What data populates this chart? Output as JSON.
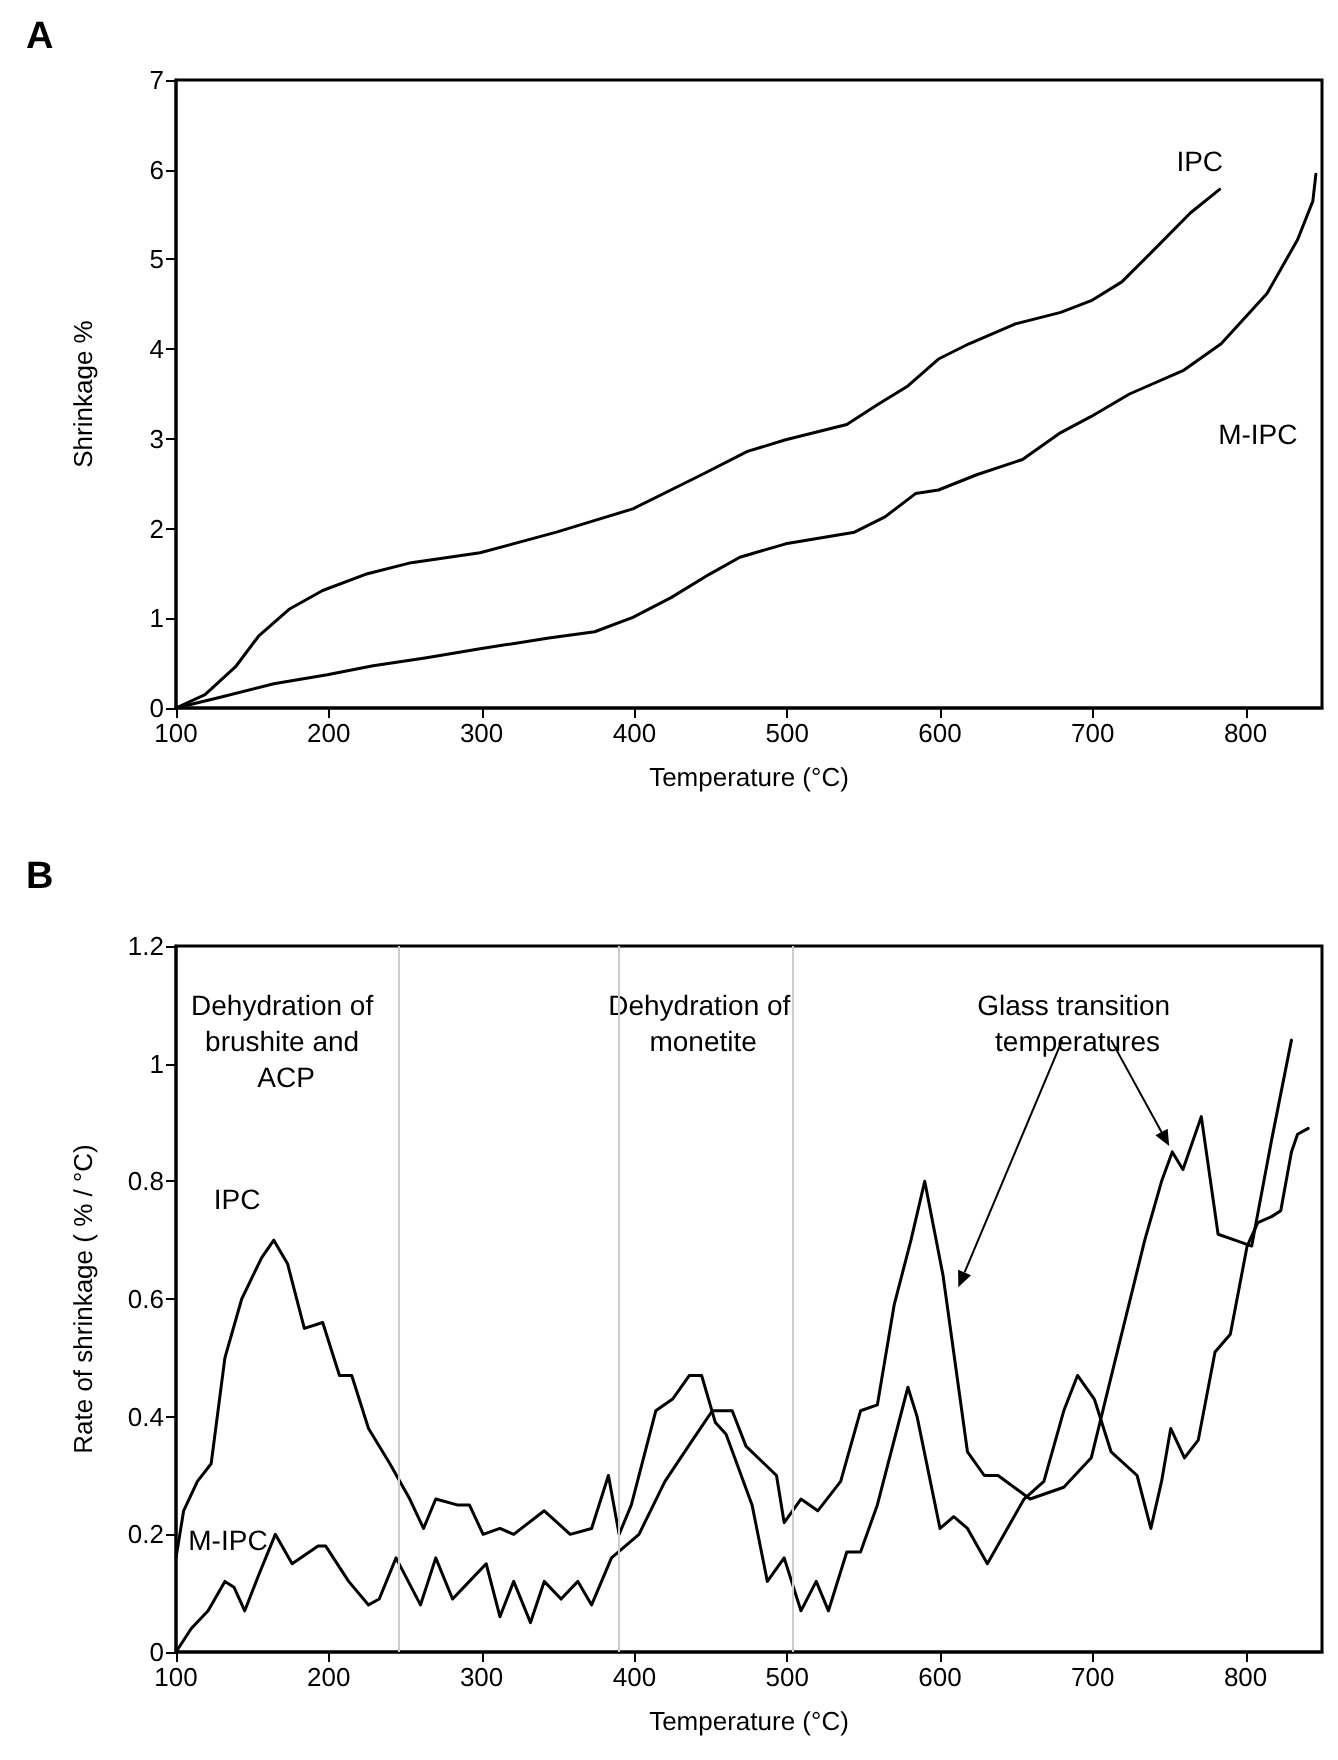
{
  "chart_data": [
    {
      "type": "line",
      "title": "A",
      "xlabel": "Temperature (°C)",
      "ylabel": "Shrinkage %",
      "xlim": [
        100,
        850
      ],
      "ylim": [
        0,
        7
      ],
      "xticks": [
        100,
        200,
        300,
        400,
        500,
        600,
        700,
        800
      ],
      "yticks": [
        0,
        1,
        2,
        3,
        4,
        5,
        6,
        7
      ],
      "marker": "none",
      "line_style": "solid",
      "series": [
        {
          "name": "IPC",
          "color": "#000000",
          "x": [
            100,
            119,
            139,
            154,
            174,
            196,
            224,
            254,
            299,
            349,
            399,
            444,
            474,
            499,
            539,
            559,
            579,
            599,
            619,
            649,
            679,
            699,
            719,
            739,
            764,
            783
          ],
          "values": [
            0,
            0.15,
            0.46,
            0.8,
            1.1,
            1.31,
            1.49,
            1.62,
            1.73,
            1.96,
            2.22,
            2.6,
            2.86,
            2.99,
            3.16,
            3.38,
            3.59,
            3.89,
            4.06,
            4.28,
            4.41,
            4.54,
            4.75,
            5.09,
            5.52,
            5.78
          ]
        },
        {
          "name": "M-IPC",
          "color": "#000000",
          "x": [
            100,
            129,
            164,
            199,
            229,
            264,
            299,
            344,
            374,
            399,
            424,
            449,
            469,
            499,
            544,
            564,
            584,
            599,
            624,
            654,
            679,
            699,
            724,
            759,
            784,
            814,
            834,
            844,
            846
          ],
          "values": [
            0,
            0.12,
            0.27,
            0.37,
            0.47,
            0.56,
            0.66,
            0.78,
            0.85,
            1.01,
            1.23,
            1.49,
            1.68,
            1.83,
            1.96,
            2.13,
            2.39,
            2.43,
            2.6,
            2.77,
            3.07,
            3.25,
            3.5,
            3.76,
            4.06,
            4.62,
            5.22,
            5.65,
            5.95
          ]
        }
      ]
    },
    {
      "type": "line",
      "title": "B",
      "xlabel": "Temperature (°C)",
      "ylabel": "Rate of shrinkage ( % / °C)",
      "xlim": [
        100,
        850
      ],
      "ylim": [
        0,
        1.2
      ],
      "xticks": [
        100,
        200,
        300,
        400,
        500,
        600,
        700,
        800
      ],
      "yticks": [
        0,
        0.2,
        0.4,
        0.6,
        0.8,
        1,
        1.2
      ],
      "marker": "none",
      "line_style": "solid",
      "annotations": [
        "Dehydration of brushite and ACP",
        "Dehydration of monetite",
        "Glass transition temperatures"
      ],
      "ref_lines": [
        {
          "axis": "x",
          "value": 245,
          "color": "#cccccc",
          "line_style": "solid"
        },
        {
          "axis": "x",
          "value": 390,
          "color": "#cccccc",
          "line_style": "solid"
        },
        {
          "axis": "x",
          "value": 503,
          "color": "#cccccc",
          "line_style": "solid"
        }
      ],
      "series": [
        {
          "name": "IPC",
          "color": "#000000",
          "x": [
            100,
            105,
            114,
            123,
            132,
            143,
            156,
            164,
            173,
            184,
            196,
            207,
            215,
            226,
            240,
            253,
            262,
            270,
            284,
            292,
            301,
            312,
            321,
            341,
            358,
            372,
            383,
            390,
            398,
            414,
            425,
            436,
            444,
            453,
            460,
            477,
            487,
            498,
            509,
            519,
            527,
            539,
            548,
            559,
            579,
            585,
            600,
            609,
            618,
            631,
            655,
            668,
            681,
            690,
            701,
            712,
            729,
            738,
            745,
            751,
            760,
            769,
            780,
            790,
            801,
            808,
            817,
            823,
            830,
            834,
            841
          ],
          "values": [
            0.16,
            0.24,
            0.29,
            0.32,
            0.5,
            0.6,
            0.67,
            0.7,
            0.66,
            0.55,
            0.56,
            0.47,
            0.47,
            0.38,
            0.32,
            0.26,
            0.21,
            0.26,
            0.25,
            0.25,
            0.2,
            0.21,
            0.2,
            0.24,
            0.2,
            0.21,
            0.3,
            0.2,
            0.25,
            0.41,
            0.43,
            0.47,
            0.47,
            0.39,
            0.37,
            0.25,
            0.12,
            0.16,
            0.07,
            0.12,
            0.07,
            0.17,
            0.17,
            0.25,
            0.45,
            0.4,
            0.21,
            0.23,
            0.21,
            0.15,
            0.26,
            0.29,
            0.41,
            0.47,
            0.43,
            0.34,
            0.3,
            0.21,
            0.29,
            0.38,
            0.33,
            0.36,
            0.51,
            0.54,
            0.69,
            0.73,
            0.74,
            0.75,
            0.85,
            0.88,
            0.89
          ]
        },
        {
          "name": "M-IPC",
          "color": "#000000",
          "x": [
            100,
            110,
            121,
            132,
            138,
            145,
            154,
            165,
            176,
            193,
            198,
            213,
            226,
            233,
            244,
            260,
            270,
            281,
            292,
            303,
            312,
            321,
            332,
            341,
            352,
            363,
            372,
            385,
            403,
            420,
            438,
            451,
            464,
            473,
            493,
            498,
            509,
            520,
            535,
            548,
            559,
            570,
            581,
            590,
            602,
            618,
            629,
            638,
            659,
            681,
            699,
            716,
            734,
            745,
            752,
            759,
            771,
            782,
            793,
            804,
            817,
            830
          ],
          "values": [
            0,
            0.04,
            0.07,
            0.12,
            0.11,
            0.07,
            0.13,
            0.2,
            0.15,
            0.18,
            0.18,
            0.12,
            0.08,
            0.09,
            0.16,
            0.08,
            0.16,
            0.09,
            0.12,
            0.15,
            0.06,
            0.12,
            0.05,
            0.12,
            0.09,
            0.12,
            0.08,
            0.16,
            0.2,
            0.29,
            0.36,
            0.41,
            0.41,
            0.35,
            0.3,
            0.22,
            0.26,
            0.24,
            0.29,
            0.41,
            0.42,
            0.59,
            0.7,
            0.8,
            0.64,
            0.34,
            0.3,
            0.3,
            0.26,
            0.28,
            0.33,
            0.51,
            0.7,
            0.8,
            0.85,
            0.82,
            0.91,
            0.71,
            0.7,
            0.69,
            0.87,
            1.04
          ]
        }
      ]
    }
  ]
}
